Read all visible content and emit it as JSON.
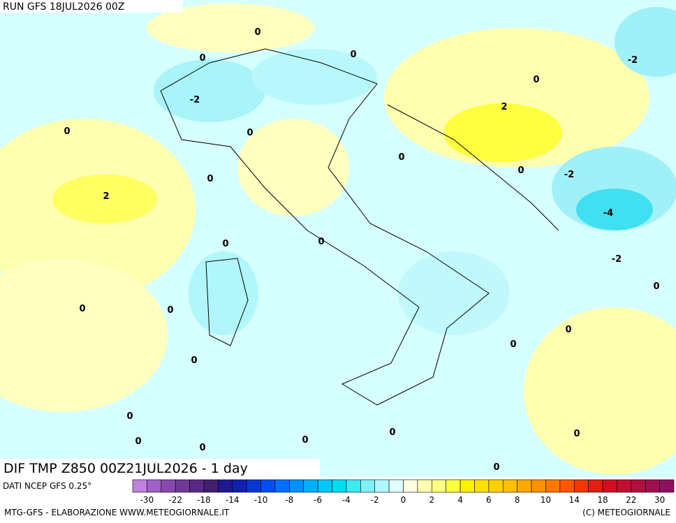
{
  "header": {
    "run": "RUN GFS 18JUL2026 00Z"
  },
  "map": {
    "title": "DIF TMP Z850 00Z21JUL2026 - 1 day",
    "source": "DATI NCEP GFS 0.25°",
    "contour_labels": [
      0,
      0,
      0,
      -2,
      0,
      -2,
      2,
      0,
      0,
      0,
      0,
      -2,
      0,
      2,
      -4,
      0,
      0,
      -2,
      0,
      0,
      0,
      0,
      0,
      0,
      0,
      0,
      0,
      0,
      0,
      0,
      0
    ]
  },
  "colorbar": {
    "colors": [
      "#c080e0",
      "#a060c8",
      "#8848b0",
      "#703898",
      "#582888",
      "#402070",
      "#201890",
      "#1020b0",
      "#0838d0",
      "#0050f0",
      "#0070ff",
      "#0090ff",
      "#00b0ff",
      "#00c8f8",
      "#00dcf0",
      "#40e8f0",
      "#80f0f8",
      "#b0f8ff",
      "#e0ffff",
      "#ffffe0",
      "#ffffb0",
      "#ffff80",
      "#ffff40",
      "#fff000",
      "#ffe000",
      "#ffd000",
      "#ffc000",
      "#ffa800",
      "#ff9000",
      "#ff7800",
      "#ff5800",
      "#f03800",
      "#e02010",
      "#d01020",
      "#c01030",
      "#b01040",
      "#a01050",
      "#901060"
    ],
    "labels": [
      -30,
      -22,
      -18,
      -14,
      -10,
      -8,
      -6,
      -4,
      -2,
      0,
      2,
      4,
      6,
      8,
      10,
      14,
      18,
      22,
      30
    ]
  },
  "footer": {
    "left": "MTG-GFS - ELABORAZIONE WWW.METEOGIORNALE.IT",
    "right": "(C) METEOGIORNALE"
  }
}
